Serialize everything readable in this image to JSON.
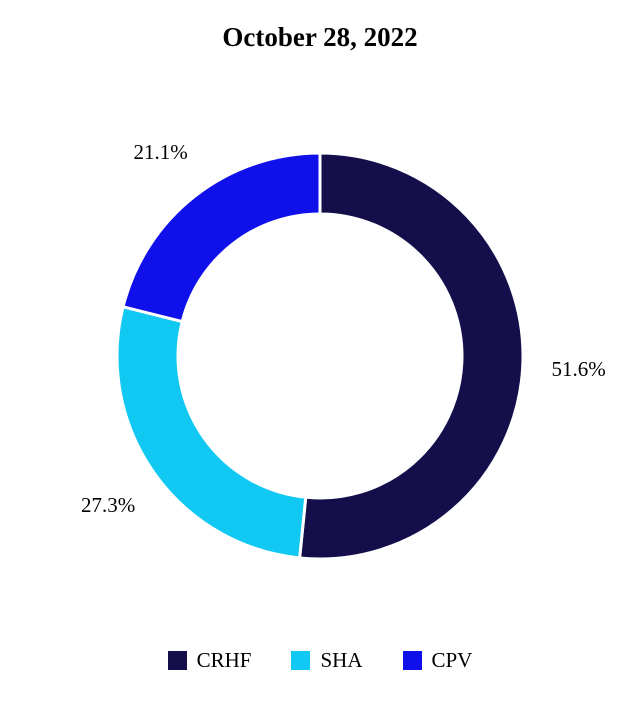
{
  "chart_data": {
    "type": "pie",
    "title": "October 28, 2022",
    "categories": [
      "CRHF",
      "SHA",
      "CPV"
    ],
    "values": [
      51.6,
      27.3,
      21.1
    ],
    "data_labels": [
      "51.6%",
      "27.3%",
      "21.1%"
    ],
    "colors": [
      "#140f4a",
      "#10c8f2",
      "#1010ea"
    ],
    "donut": true,
    "legend_position": "bottom"
  }
}
